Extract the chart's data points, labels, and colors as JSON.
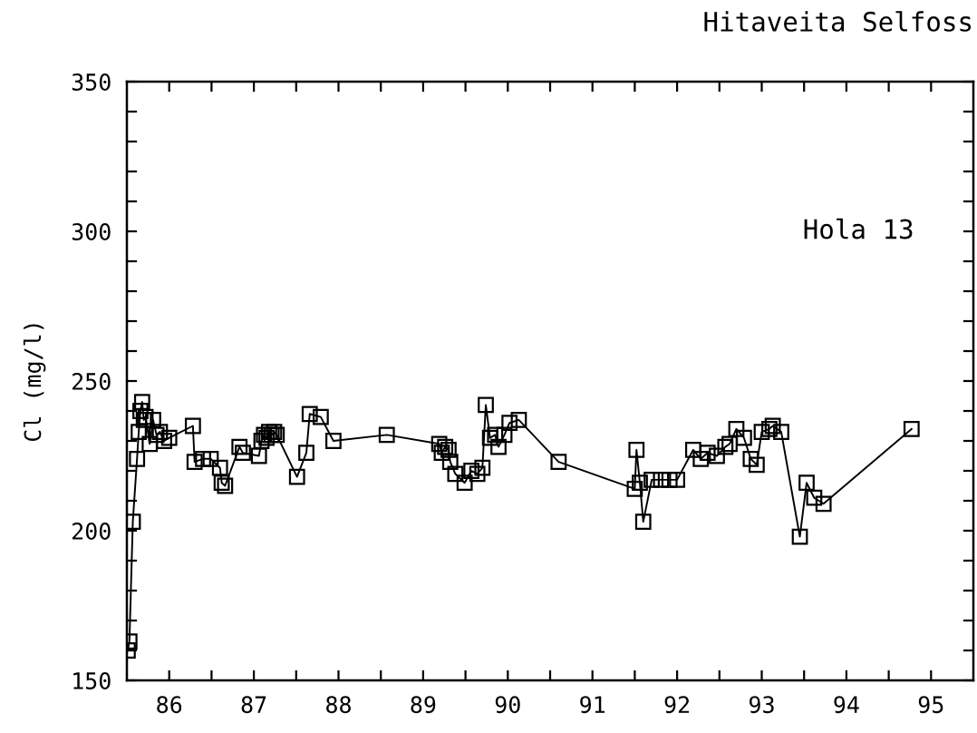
{
  "chart_data": {
    "type": "line",
    "title": "Hitaveita Selfoss",
    "ylabel": "Cl (mg/l)",
    "annotations": [
      "Hola 13"
    ],
    "x": [
      86.01,
      86.03,
      86.07,
      86.12,
      86.14,
      86.16,
      86.18,
      86.2,
      86.22,
      86.27,
      86.31,
      86.35,
      86.39,
      86.44,
      86.5,
      86.78,
      86.8,
      86.9,
      86.99,
      87.1,
      87.12,
      87.16,
      87.33,
      87.37,
      87.56,
      87.59,
      87.62,
      87.65,
      87.68,
      87.71,
      87.74,
      87.77,
      88.01,
      88.12,
      88.16,
      88.29,
      88.44,
      89.07,
      89.69,
      89.72,
      89.76,
      89.8,
      89.82,
      89.88,
      89.99,
      90.07,
      90.14,
      90.2,
      90.24,
      90.29,
      90.35,
      90.39,
      90.46,
      90.52,
      90.63,
      91.1,
      92.0,
      92.02,
      92.06,
      92.1,
      92.2,
      92.31,
      92.41,
      92.5,
      92.69,
      92.78,
      92.86,
      92.97,
      93.07,
      93.12,
      93.2,
      93.29,
      93.37,
      93.44,
      93.5,
      93.59,
      93.63,
      93.73,
      93.95,
      94.03,
      94.12,
      94.23,
      95.27
    ],
    "values": [
      160,
      163,
      203,
      224,
      233,
      240,
      243,
      237,
      238,
      229,
      237,
      232,
      233,
      230,
      231,
      235,
      223,
      224,
      224,
      221,
      216,
      215,
      228,
      226,
      225,
      230,
      232,
      231,
      233,
      232,
      233,
      232,
      218,
      226,
      239,
      238,
      230,
      232,
      229,
      226,
      228,
      227,
      223,
      219,
      216,
      220,
      219,
      221,
      242,
      231,
      232,
      228,
      232,
      236,
      237,
      223,
      214,
      227,
      216,
      203,
      217,
      217,
      217,
      217,
      227,
      224,
      226,
      225,
      228,
      229,
      234,
      231,
      224,
      222,
      233,
      234,
      235,
      233,
      198,
      216,
      211,
      209,
      234
    ],
    "color": "#000000",
    "marker": "square",
    "line_style": "solid",
    "xlim": [
      86,
      96
    ],
    "ylim": [
      150,
      350
    ],
    "xticks": [
      {
        "value": 86.5,
        "label": "86"
      },
      {
        "value": 87,
        "label": null
      },
      {
        "value": 87.5,
        "label": "87"
      },
      {
        "value": 88,
        "label": null
      },
      {
        "value": 88.5,
        "label": "88"
      },
      {
        "value": 89,
        "label": null
      },
      {
        "value": 89.5,
        "label": "89"
      },
      {
        "value": 90,
        "label": null
      },
      {
        "value": 90.5,
        "label": "90"
      },
      {
        "value": 91,
        "label": null
      },
      {
        "value": 91.5,
        "label": "91"
      },
      {
        "value": 92,
        "label": null
      },
      {
        "value": 92.5,
        "label": "92"
      },
      {
        "value": 93,
        "label": null
      },
      {
        "value": 93.5,
        "label": "93"
      },
      {
        "value": 94,
        "label": null
      },
      {
        "value": 94.5,
        "label": "94"
      },
      {
        "value": 95,
        "label": null
      },
      {
        "value": 95.5,
        "label": "95"
      }
    ],
    "yticks": [
      150,
      {
        "value": 160,
        "label": null
      },
      {
        "value": 170,
        "label": null
      },
      {
        "value": 180,
        "label": null
      },
      {
        "value": 190,
        "label": null
      },
      200,
      {
        "value": 210,
        "label": null
      },
      {
        "value": 220,
        "label": null
      },
      {
        "value": 230,
        "label": null
      },
      {
        "value": 240,
        "label": null
      },
      250,
      {
        "value": 260,
        "label": null
      },
      {
        "value": 270,
        "label": null
      },
      {
        "value": 280,
        "label": null
      },
      {
        "value": 290,
        "label": null
      },
      300,
      {
        "value": 310,
        "label": null
      },
      {
        "value": 320,
        "label": null
      },
      {
        "value": 330,
        "label": null
      },
      {
        "value": 340,
        "label": null
      },
      350
    ]
  }
}
